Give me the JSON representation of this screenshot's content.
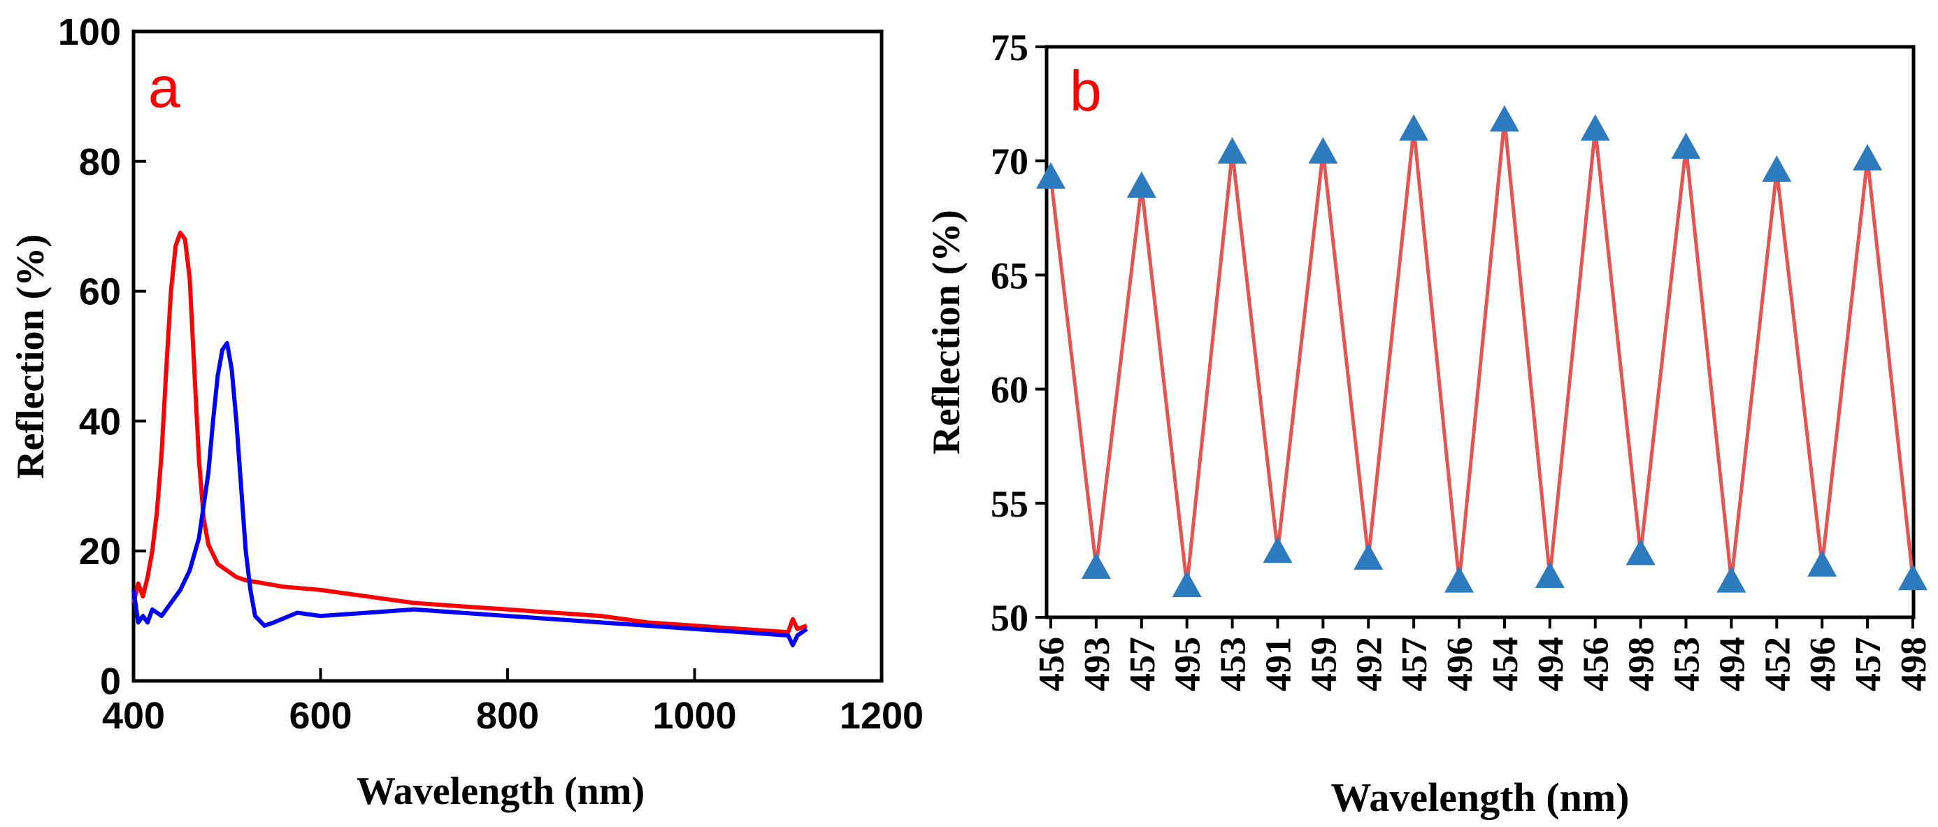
{
  "chart_data": [
    {
      "panel_label": "a",
      "type": "line",
      "xlabel": "Wavelength (nm)",
      "ylabel": "Reflection (%)",
      "xlim": [
        400,
        1200
      ],
      "ylim": [
        0,
        100
      ],
      "xticks": [
        400,
        600,
        800,
        1000,
        1200
      ],
      "yticks": [
        0,
        20,
        40,
        60,
        80,
        100
      ],
      "grid": false,
      "series": [
        {
          "color": "#ff0000",
          "x": [
            400,
            405,
            410,
            415,
            420,
            425,
            430,
            435,
            440,
            445,
            450,
            455,
            460,
            465,
            470,
            475,
            480,
            490,
            500,
            510,
            520,
            540,
            560,
            600,
            650,
            700,
            750,
            800,
            850,
            900,
            950,
            1000,
            1050,
            1100,
            1105,
            1110,
            1120
          ],
          "y": [
            12,
            15,
            13,
            16,
            20,
            26,
            35,
            48,
            60,
            67,
            69,
            68,
            62,
            48,
            34,
            25,
            21,
            18,
            17,
            16,
            15.5,
            15,
            14.5,
            14,
            13,
            12,
            11.5,
            11,
            10.5,
            10,
            9,
            8.5,
            8,
            7.5,
            9.5,
            8,
            8.5
          ]
        },
        {
          "color": "#0000ff",
          "x": [
            400,
            405,
            410,
            415,
            420,
            430,
            440,
            450,
            460,
            470,
            480,
            485,
            490,
            495,
            500,
            505,
            510,
            515,
            520,
            525,
            530,
            540,
            550,
            575,
            600,
            650,
            700,
            750,
            800,
            850,
            900,
            950,
            1000,
            1050,
            1100,
            1105,
            1110,
            1120
          ],
          "y": [
            14,
            9,
            10,
            9,
            11,
            10,
            12,
            14,
            17,
            22,
            32,
            40,
            47,
            51,
            52,
            48,
            40,
            30,
            20,
            14,
            10,
            8.5,
            9,
            10.5,
            10,
            10.5,
            11,
            10.5,
            10,
            9.5,
            9,
            8.5,
            8,
            7.5,
            7,
            5.5,
            7,
            8
          ]
        }
      ]
    },
    {
      "panel_label": "b",
      "type": "line",
      "xlabel": "Wavelength (nm)",
      "ylabel": "Reflection (%)",
      "ylim": [
        50,
        75
      ],
      "yticks": [
        50,
        55,
        60,
        65,
        70,
        75
      ],
      "grid": false,
      "line_color": "#e8534f",
      "marker_color": "#2d7bbf",
      "marker": "triangle",
      "categories": [
        "456",
        "493",
        "457",
        "495",
        "453",
        "491",
        "459",
        "492",
        "457",
        "496",
        "454",
        "494",
        "456",
        "498",
        "453",
        "494",
        "452",
        "496",
        "457",
        "498"
      ],
      "values": [
        69.3,
        52.2,
        68.9,
        51.4,
        70.4,
        52.9,
        70.4,
        52.6,
        71.4,
        51.6,
        71.8,
        51.8,
        71.4,
        52.8,
        70.6,
        51.6,
        69.6,
        52.3,
        70.1,
        51.7
      ]
    }
  ]
}
